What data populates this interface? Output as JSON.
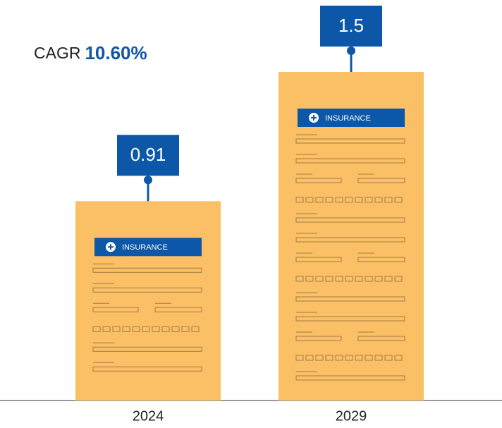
{
  "chart_data": {
    "type": "bar",
    "annotation_label": "CAGR",
    "annotation_value": "10.60%",
    "document_label": "INSURANCE",
    "categories": [
      "2024",
      "2029"
    ],
    "values": [
      0.91,
      1.5
    ],
    "color": "#fbbf66",
    "label_color": "#0d57a8",
    "ylim": [
      0,
      1.5
    ]
  }
}
